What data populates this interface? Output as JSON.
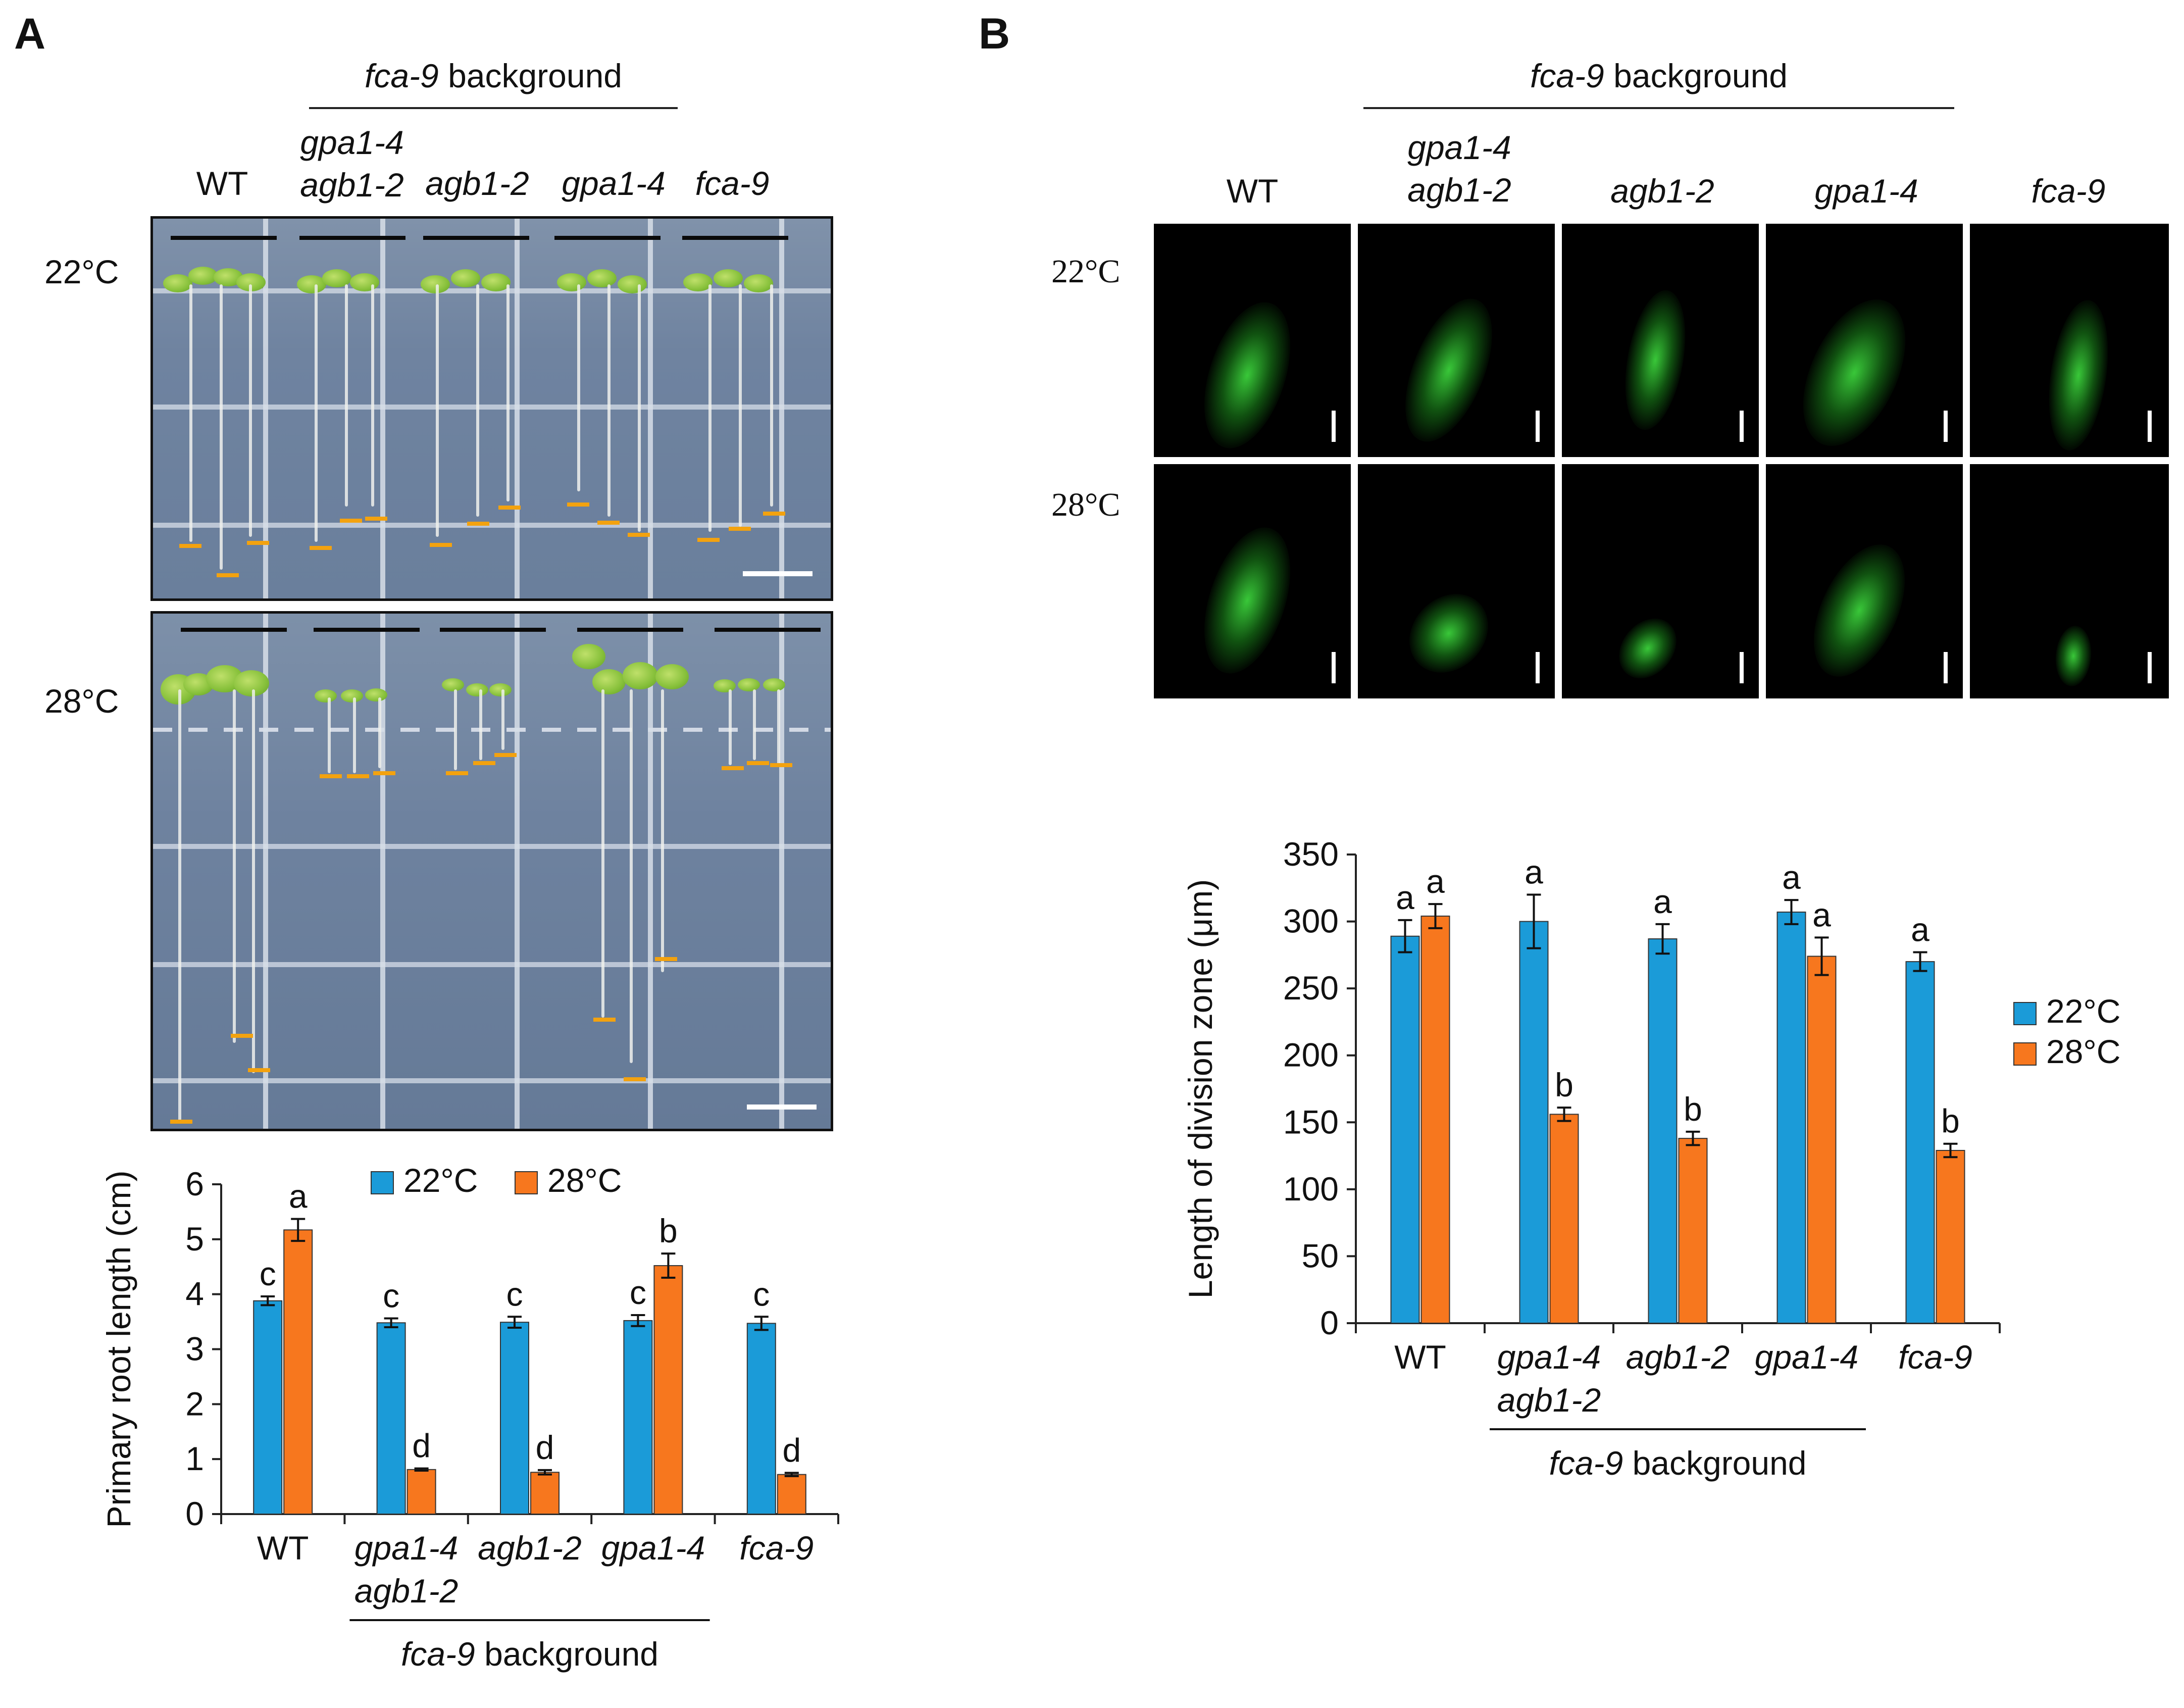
{
  "panel_a": {
    "letter": "A",
    "background_label": "fca-9",
    "background_suffix": "background",
    "genotypes": [
      {
        "line1": "WT",
        "line2": ""
      },
      {
        "line1": "gpa1-4",
        "line2": "agb1-2"
      },
      {
        "line1": "agb1-2",
        "line2": ""
      },
      {
        "line1": "gpa1-4",
        "line2": ""
      },
      {
        "line1": "fca-9",
        "line2": ""
      }
    ],
    "temp_22": "22°C",
    "temp_28": "28°C"
  },
  "panel_b": {
    "letter": "B",
    "background_label": "fca-9",
    "background_suffix": "background",
    "genotypes": [
      {
        "line1": "WT",
        "line2": ""
      },
      {
        "line1": "gpa1-4",
        "line2": "agb1-2"
      },
      {
        "line1": "agb1-2",
        "line2": ""
      },
      {
        "line1": "gpa1-4",
        "line2": ""
      },
      {
        "line1": "fca-9",
        "line2": ""
      }
    ],
    "temp_22": "22°C",
    "temp_28": "28°C"
  },
  "colors": {
    "blue": "#1b9bd8",
    "orange": "#f7771e",
    "axis": "#222222"
  },
  "chart_data": [
    {
      "type": "bar",
      "id": "root-length",
      "ylabel": "Primary root length (cm)",
      "ylim": [
        0,
        6
      ],
      "yticks": [
        0,
        1,
        2,
        3,
        4,
        5,
        6
      ],
      "categories": [
        {
          "line1": "WT",
          "line2": ""
        },
        {
          "line1": "gpa1-4",
          "line2": "agb1-2"
        },
        {
          "line1": "agb1-2",
          "line2": ""
        },
        {
          "line1": "gpa1-4",
          "line2": ""
        },
        {
          "line1": "fca-9",
          "line2": ""
        }
      ],
      "series": [
        {
          "name": "22°C",
          "values": [
            3.88,
            3.48,
            3.49,
            3.52,
            3.47
          ],
          "errors": [
            0.08,
            0.08,
            0.1,
            0.1,
            0.12
          ],
          "letters": [
            "c",
            "c",
            "c",
            "c",
            "c"
          ]
        },
        {
          "name": "28°C",
          "values": [
            5.17,
            0.81,
            0.76,
            4.52,
            0.72
          ],
          "errors": [
            0.2,
            0.02,
            0.04,
            0.22,
            0.03
          ],
          "letters": [
            "a",
            "d",
            "d",
            "b",
            "d"
          ]
        }
      ],
      "legend": "top",
      "group_label": {
        "italic": "fca-9",
        "text": "background"
      }
    },
    {
      "type": "bar",
      "id": "division-zone",
      "ylabel": "Length of division zone (μm)",
      "ylim": [
        0,
        350
      ],
      "yticks": [
        0,
        50,
        100,
        150,
        200,
        250,
        300,
        350
      ],
      "categories": [
        {
          "line1": "WT",
          "line2": ""
        },
        {
          "line1": "gpa1-4",
          "line2": "agb1-2"
        },
        {
          "line1": "agb1-2",
          "line2": ""
        },
        {
          "line1": "gpa1-4",
          "line2": ""
        },
        {
          "line1": "fca-9",
          "line2": ""
        }
      ],
      "series": [
        {
          "name": "22°C",
          "values": [
            289,
            300,
            287,
            307,
            270
          ],
          "errors": [
            12,
            20,
            11,
            9,
            7
          ],
          "letters": [
            "a",
            "a",
            "a",
            "a",
            "a"
          ]
        },
        {
          "name": "28°C",
          "values": [
            304,
            156,
            138,
            274,
            129
          ],
          "errors": [
            9,
            5,
            5,
            14,
            5
          ],
          "letters": [
            "a",
            "b",
            "b",
            "a",
            "b"
          ]
        }
      ],
      "legend": "right",
      "group_label": {
        "italic": "fca-9",
        "text": "background"
      }
    }
  ]
}
